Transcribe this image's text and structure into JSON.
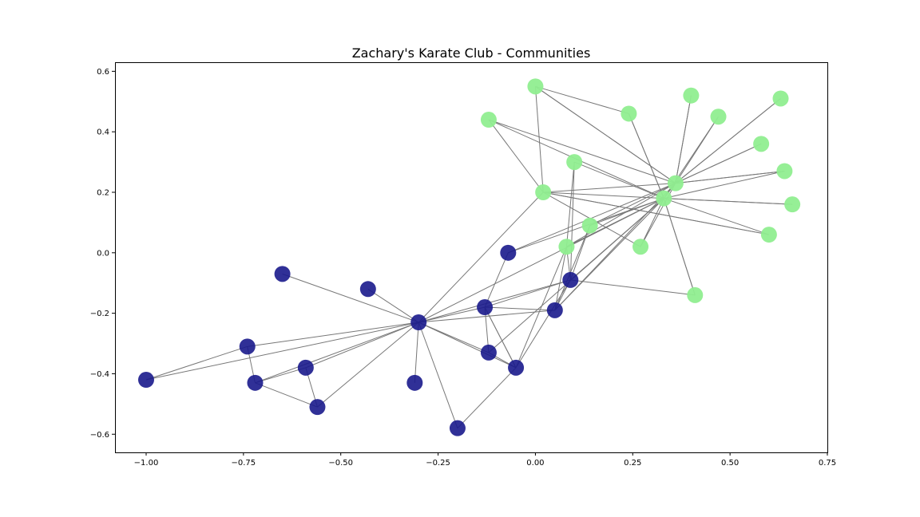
{
  "chart_data": {
    "type": "scatter",
    "title": "Zachary's Karate Club - Communities",
    "xlabel": "",
    "ylabel": "",
    "xlim": [
      -1.08,
      0.75
    ],
    "ylim": [
      -0.66,
      0.63
    ],
    "x_ticks": [
      {
        "value": -1.0,
        "label": "−1.00"
      },
      {
        "value": -0.75,
        "label": "−0.75"
      },
      {
        "value": -0.5,
        "label": "−0.50"
      },
      {
        "value": -0.25,
        "label": "−0.25"
      },
      {
        "value": 0.0,
        "label": "0.00"
      },
      {
        "value": 0.25,
        "label": "0.25"
      },
      {
        "value": 0.5,
        "label": "0.50"
      },
      {
        "value": 0.75,
        "label": "0.75"
      }
    ],
    "y_ticks": [
      {
        "value": 0.6,
        "label": "0.6"
      },
      {
        "value": 0.4,
        "label": "0.4"
      },
      {
        "value": 0.2,
        "label": "0.2"
      },
      {
        "value": 0.0,
        "label": "0.0"
      },
      {
        "value": -0.2,
        "label": "−0.2"
      },
      {
        "value": -0.4,
        "label": "−0.4"
      },
      {
        "value": -0.6,
        "label": "−0.6"
      }
    ],
    "grid": false,
    "communities": [
      {
        "color": "#1a1a8c",
        "nodes": [
          [
            -0.3,
            -0.23
          ],
          [
            -0.13,
            -0.18
          ],
          [
            -0.05,
            -0.38
          ],
          [
            -0.12,
            -0.33
          ],
          [
            -0.56,
            -0.51
          ],
          [
            -0.59,
            -0.38
          ],
          [
            -0.72,
            -0.43
          ],
          [
            -0.74,
            -0.31
          ],
          [
            -1.0,
            -0.42
          ],
          [
            -0.65,
            -0.07
          ],
          [
            -0.43,
            -0.12
          ],
          [
            -0.31,
            -0.43
          ],
          [
            -0.2,
            -0.58
          ],
          [
            -0.07,
            0.0
          ],
          [
            0.05,
            -0.19
          ],
          [
            0.09,
            -0.09
          ]
        ]
      },
      {
        "color": "#90ee90",
        "nodes": [
          [
            0.33,
            0.18
          ],
          [
            0.36,
            0.23
          ],
          [
            0.02,
            0.2
          ],
          [
            0.1,
            0.3
          ],
          [
            0.14,
            0.09
          ],
          [
            0.08,
            0.02
          ],
          [
            0.27,
            0.02
          ],
          [
            0.41,
            -0.14
          ],
          [
            0.6,
            0.06
          ],
          [
            0.66,
            0.16
          ],
          [
            0.64,
            0.27
          ],
          [
            0.58,
            0.36
          ],
          [
            0.63,
            0.51
          ],
          [
            0.47,
            0.45
          ],
          [
            0.4,
            0.52
          ],
          [
            0.24,
            0.46
          ],
          [
            0.0,
            0.55
          ],
          [
            -0.12,
            0.44
          ]
        ]
      }
    ],
    "edges": [
      [
        0,
        1
      ],
      [
        0,
        2
      ],
      [
        0,
        3
      ],
      [
        0,
        4
      ],
      [
        0,
        5
      ],
      [
        0,
        6
      ],
      [
        0,
        7
      ],
      [
        0,
        8
      ],
      [
        0,
        9
      ],
      [
        0,
        10
      ],
      [
        0,
        11
      ],
      [
        0,
        12
      ],
      [
        0,
        14
      ],
      [
        0,
        15
      ],
      [
        0,
        18
      ],
      [
        0,
        16
      ],
      [
        1,
        2
      ],
      [
        1,
        3
      ],
      [
        1,
        13
      ],
      [
        1,
        15
      ],
      [
        1,
        14
      ],
      [
        1,
        2
      ],
      [
        2,
        3
      ],
      [
        2,
        12
      ],
      [
        2,
        15
      ],
      [
        2,
        21
      ],
      [
        4,
        5
      ],
      [
        4,
        6
      ],
      [
        5,
        6
      ],
      [
        6,
        7
      ],
      [
        7,
        8
      ],
      [
        15,
        14
      ],
      [
        15,
        20
      ],
      [
        15,
        21
      ],
      [
        14,
        21
      ],
      [
        14,
        16
      ],
      [
        16,
        16
      ],
      [
        16,
        17
      ],
      [
        16,
        20
      ],
      [
        16,
        21
      ],
      [
        16,
        22
      ],
      [
        16,
        23
      ],
      [
        16,
        24
      ],
      [
        16,
        25
      ],
      [
        16,
        26
      ],
      [
        16,
        29
      ],
      [
        16,
        31
      ],
      [
        16,
        33
      ],
      [
        17,
        20
      ],
      [
        17,
        21
      ],
      [
        17,
        22
      ],
      [
        17,
        26
      ],
      [
        17,
        27
      ],
      [
        17,
        28
      ],
      [
        17,
        29
      ],
      [
        17,
        30
      ],
      [
        17,
        32
      ],
      [
        17,
        33
      ],
      [
        18,
        17
      ],
      [
        18,
        22
      ],
      [
        18,
        32
      ],
      [
        18,
        16
      ],
      [
        19,
        16
      ],
      [
        19,
        21
      ],
      [
        19,
        15
      ],
      [
        20,
        14
      ],
      [
        21,
        16
      ],
      [
        23,
        16
      ],
      [
        23,
        15
      ],
      [
        24,
        18
      ],
      [
        24,
        18
      ],
      [
        31,
        32
      ],
      [
        31,
        16
      ],
      [
        33,
        18
      ],
      [
        32,
        17
      ],
      [
        28,
        17
      ],
      [
        30,
        17
      ],
      [
        27,
        17
      ],
      [
        26,
        17
      ],
      [
        25,
        16
      ],
      [
        13,
        17
      ],
      [
        13,
        16
      ],
      [
        15,
        16
      ],
      [
        14,
        17
      ],
      [
        3,
        16
      ]
    ]
  }
}
